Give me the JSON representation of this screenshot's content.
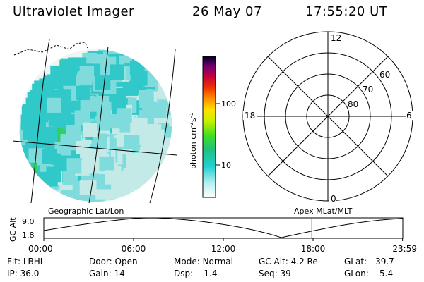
{
  "header": {
    "instrument": "Ultraviolet Imager",
    "date": "26 May 07",
    "time": "17:55:20 UT"
  },
  "colorbar": {
    "unit_label": "photon cm",
    "unit_sup1": "-2",
    "unit_mid": "s",
    "unit_sup2": "-1",
    "ticks": [
      "100",
      "10"
    ]
  },
  "polar": {
    "mlt_labels": {
      "top": "12",
      "left": "18",
      "right": "6",
      "bottom": "0"
    },
    "lat_labels": [
      "60",
      "70",
      "80"
    ]
  },
  "timeline": {
    "left_label": "Geographic Lat/Lon",
    "right_label": "Apex MLat/MLT",
    "axis_title": "GC Alt",
    "y_ticks": [
      "9.0",
      "1.8"
    ],
    "x_ticks": [
      "00:00",
      "06:00",
      "12:00",
      "18:00",
      "23:59"
    ],
    "current_time_hours": 17.92,
    "marker_color": "#ff0000"
  },
  "info": {
    "filter_label": "Flt:",
    "filter_value": "LBHL",
    "ip_label": "IP:",
    "ip_value": "36.0",
    "door_label": "Door:",
    "door_value": "Open",
    "gain_label": "Gain:",
    "gain_value": "14",
    "mode_label": "Mode:",
    "mode_value": "Normal",
    "dsp_label": "Dsp:",
    "dsp_value": "1.4",
    "gcalt_label": "GC Alt:",
    "gcalt_value": "4.2 Re",
    "seq_label": "Seq:",
    "seq_value": "39",
    "glat_label": "GLat:",
    "glat_value": "-39.7",
    "glon_label": "GLon:",
    "glon_value": "5.4"
  }
}
